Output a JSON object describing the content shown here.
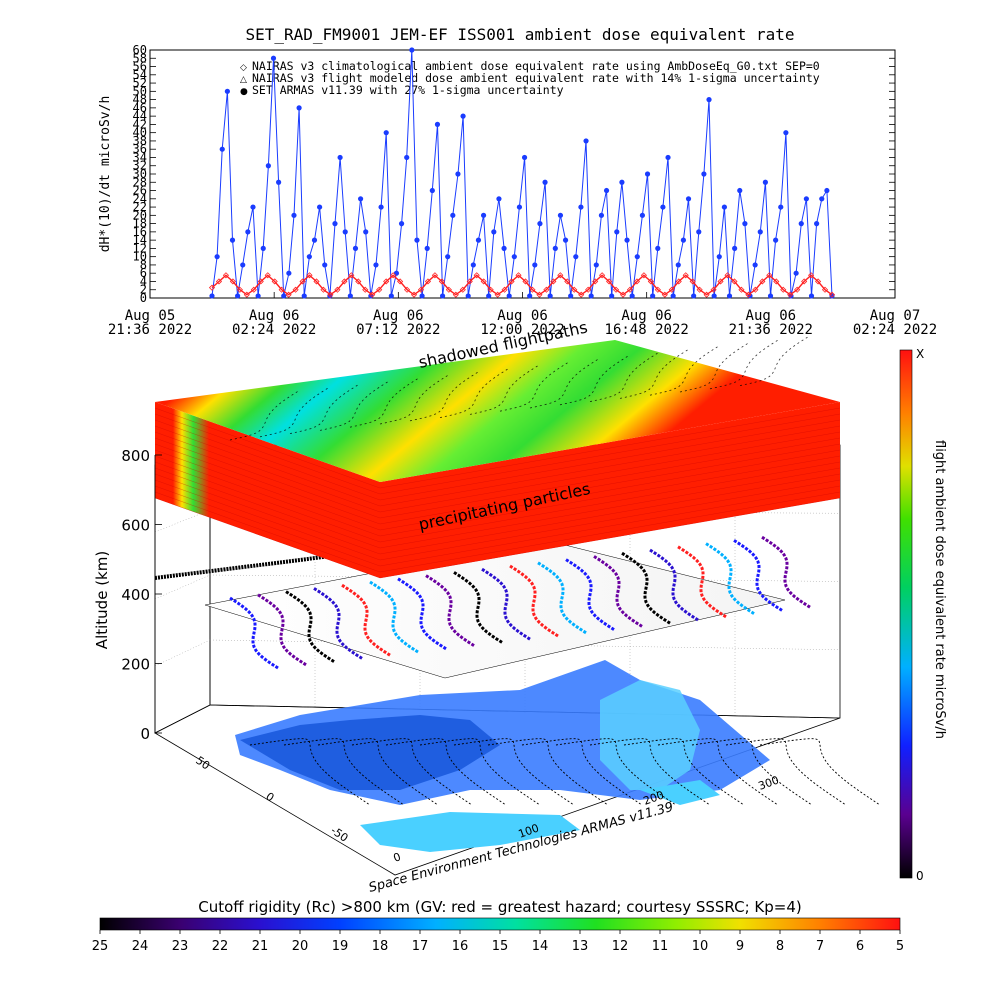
{
  "title": "SET_RAD_FM9001   JEM-EF ISS001 ambient dose equivalent rate",
  "colors": {
    "blue": "#1a3cff",
    "red": "#ff2020",
    "black": "#000000"
  },
  "chart_data": [
    {
      "type": "line",
      "ylabel": "dH*(10)/dt microSv/h",
      "ylim": [
        0,
        60
      ],
      "y_ticks": [
        "0",
        "2",
        "4",
        "6",
        "8",
        "10",
        "12",
        "14",
        "16",
        "18",
        "20",
        "22",
        "24",
        "26",
        "28",
        "30",
        "32",
        "34",
        "36",
        "38",
        "40",
        "42",
        "44",
        "46",
        "48",
        "50",
        "52",
        "54",
        "56",
        "58",
        "60"
      ],
      "x_ticks": [
        {
          "l1": "Aug 05",
          "l2": "21:36 2022"
        },
        {
          "l1": "Aug 06",
          "l2": "02:24 2022"
        },
        {
          "l1": "Aug 06",
          "l2": "07:12 2022"
        },
        {
          "l1": "Aug 06",
          "l2": "12:00 2022"
        },
        {
          "l1": "Aug 06",
          "l2": "16:48 2022"
        },
        {
          "l1": "Aug 06",
          "l2": "21:36 2022"
        },
        {
          "l1": "Aug 07",
          "l2": "02:24 2022"
        }
      ],
      "legend": [
        {
          "marker": "◇",
          "text": "NAIRAS v3 climatological ambient dose equivalent rate using AmbDoseEq_G0.txt SEP=0"
        },
        {
          "marker": "△",
          "text": "NAIRAS v3 flight modeled dose ambient equivalent rate with 14% 1-sigma uncertainty"
        },
        {
          "marker": "●",
          "text": "SET ARMAS v11.39 with 27% 1-sigma uncertainty"
        }
      ],
      "series": [
        {
          "name": "SET ARMAS v11.39 with 27% 1-sigma uncertainty",
          "values": [
            0.5,
            10,
            36,
            50,
            14,
            0.5,
            8,
            16,
            22,
            0.5,
            12,
            32,
            58,
            28,
            0.5,
            6,
            20,
            46,
            0.5,
            10,
            14,
            22,
            8,
            0.5,
            18,
            34,
            16,
            0.5,
            12,
            24,
            16,
            0.5,
            8,
            22,
            40,
            0.5,
            6,
            18,
            34,
            60,
            14,
            0.5,
            12,
            26,
            42,
            0.5,
            10,
            20,
            30,
            44,
            0.5,
            8,
            14,
            20,
            0.5,
            16,
            24,
            12,
            0.5,
            10,
            22,
            34,
            0.5,
            8,
            18,
            28,
            0.5,
            12,
            20,
            14,
            0.5,
            10,
            22,
            38,
            0.5,
            8,
            20,
            26,
            0.5,
            16,
            28,
            14,
            0.5,
            10,
            20,
            30,
            0.5,
            12,
            22,
            34,
            0.5,
            8,
            14,
            24,
            0.5,
            16,
            30,
            48,
            0.5,
            10,
            22,
            0.5,
            12,
            26,
            18,
            0.5,
            8,
            16,
            28,
            0.5,
            14,
            22,
            40,
            0.5,
            6,
            18,
            24,
            0.5,
            18,
            24,
            26,
            0.5
          ]
        },
        {
          "name": "NAIRAS v3 climatological ambient dose equivalent rate using AmbDoseEq_G0.txt SEP=0",
          "values": [
            2.5,
            4,
            5.5,
            4,
            2,
            0.8,
            2,
            4,
            5.5,
            4,
            2,
            0.8,
            2,
            4,
            5.5,
            4,
            2,
            0.8,
            2,
            4,
            5.5,
            4,
            2,
            0.8,
            2,
            4,
            5.5,
            4,
            2,
            0.8,
            2,
            4,
            5.5,
            4,
            2,
            0.8,
            2,
            4,
            5.5,
            4,
            2,
            0.8,
            2,
            4,
            5.5,
            4,
            2,
            0.8,
            2,
            4,
            5.5,
            4,
            2,
            0.8,
            2,
            4,
            5.5,
            4,
            2,
            0.8,
            2,
            4,
            5.5,
            4,
            2,
            0.8,
            2,
            4,
            5.5,
            4,
            2,
            0.8,
            2,
            4,
            5.5,
            4,
            2,
            0.8,
            2,
            4,
            5.5,
            4,
            2,
            0.8,
            2,
            4,
            5.5,
            4,
            2,
            0.8
          ]
        }
      ]
    },
    {
      "type": "scatter",
      "ylabel": "Altitude (km)",
      "z_ticks": [
        "0",
        "200",
        "400",
        "600",
        "800"
      ],
      "lat_ticks": [
        "-50",
        "0",
        "50"
      ],
      "lon_ticks": [
        "0",
        "100",
        "200",
        "300"
      ],
      "labels": {
        "top": "shadowed flightpaths",
        "mid": "precipitating particles",
        "credit": "Space Environment Technologies ARMAS v11.39"
      },
      "colorbar": {
        "label": "flight ambient dose equivalent rate microSv/h",
        "max_label": "X",
        "min_label": "0"
      }
    },
    {
      "type": "heatmap",
      "title": "Cutoff rigidity (Rc) >800 km (GV: red = greatest hazard; courtesy SSSRC; Kp=4)",
      "ticks": [
        "25",
        "24",
        "23",
        "22",
        "21",
        "20",
        "19",
        "18",
        "17",
        "16",
        "15",
        "14",
        "13",
        "12",
        "11",
        "10",
        "9",
        "8",
        "7",
        "6",
        "5"
      ]
    }
  ]
}
